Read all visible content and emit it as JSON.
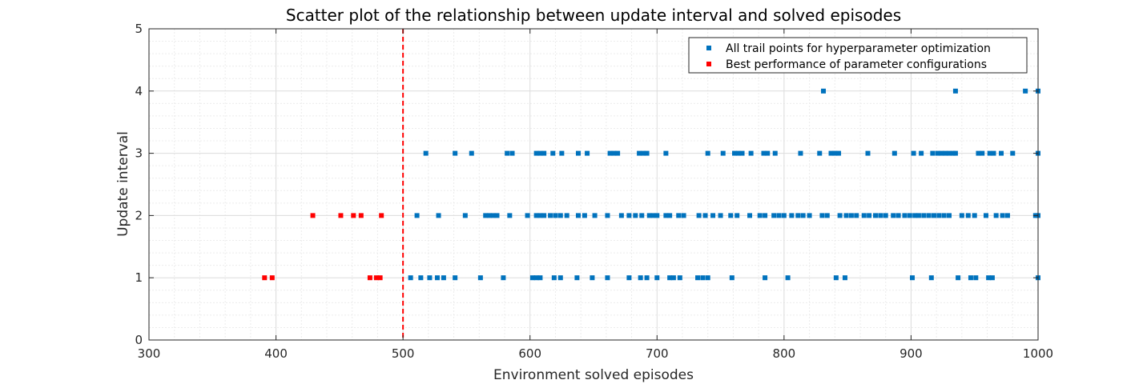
{
  "chart_data": {
    "type": "scatter",
    "title": "Scatter plot of the relationship between update interval and solved episodes",
    "xlabel": "Environment solved episodes",
    "ylabel": "Update interval",
    "xlim": [
      300,
      1000
    ],
    "ylim": [
      0,
      5
    ],
    "xticks": [
      "300",
      "400",
      "500",
      "600",
      "700",
      "800",
      "900",
      "1000"
    ],
    "yticks": [
      "0",
      "1",
      "2",
      "3",
      "4",
      "5"
    ],
    "grid": true,
    "minor_grid": true,
    "legend_position": "top-right",
    "reference_line": {
      "axis": "x",
      "value": 500,
      "style": "dashed",
      "color": "#ff0000"
    },
    "series": [
      {
        "name": "All trail points for hyperparameter optimization",
        "color": "#0072bd",
        "marker": "square",
        "points": [
          [
            831,
            4
          ],
          [
            935,
            4
          ],
          [
            990,
            4
          ],
          [
            1000,
            4
          ],
          [
            518,
            3
          ],
          [
            541,
            3
          ],
          [
            554,
            3
          ],
          [
            582,
            3
          ],
          [
            586,
            3
          ],
          [
            605,
            3
          ],
          [
            608,
            3
          ],
          [
            611,
            3
          ],
          [
            618,
            3
          ],
          [
            625,
            3
          ],
          [
            638,
            3
          ],
          [
            645,
            3
          ],
          [
            663,
            3
          ],
          [
            666,
            3
          ],
          [
            669,
            3
          ],
          [
            686,
            3
          ],
          [
            689,
            3
          ],
          [
            692,
            3
          ],
          [
            707,
            3
          ],
          [
            740,
            3
          ],
          [
            752,
            3
          ],
          [
            761,
            3
          ],
          [
            764,
            3
          ],
          [
            767,
            3
          ],
          [
            774,
            3
          ],
          [
            784,
            3
          ],
          [
            787,
            3
          ],
          [
            793,
            3
          ],
          [
            813,
            3
          ],
          [
            828,
            3
          ],
          [
            837,
            3
          ],
          [
            840,
            3
          ],
          [
            843,
            3
          ],
          [
            866,
            3
          ],
          [
            887,
            3
          ],
          [
            902,
            3
          ],
          [
            908,
            3
          ],
          [
            917,
            3
          ],
          [
            921,
            3
          ],
          [
            924,
            3
          ],
          [
            927,
            3
          ],
          [
            930,
            3
          ],
          [
            933,
            3
          ],
          [
            935,
            3
          ],
          [
            953,
            3
          ],
          [
            956,
            3
          ],
          [
            962,
            3
          ],
          [
            965,
            3
          ],
          [
            971,
            3
          ],
          [
            980,
            3
          ],
          [
            1000,
            3
          ],
          [
            511,
            2
          ],
          [
            528,
            2
          ],
          [
            549,
            2
          ],
          [
            565,
            2
          ],
          [
            568,
            2
          ],
          [
            571,
            2
          ],
          [
            574,
            2
          ],
          [
            584,
            2
          ],
          [
            598,
            2
          ],
          [
            605,
            2
          ],
          [
            608,
            2
          ],
          [
            611,
            2
          ],
          [
            616,
            2
          ],
          [
            620,
            2
          ],
          [
            624,
            2
          ],
          [
            629,
            2
          ],
          [
            638,
            2
          ],
          [
            643,
            2
          ],
          [
            651,
            2
          ],
          [
            661,
            2
          ],
          [
            672,
            2
          ],
          [
            678,
            2
          ],
          [
            683,
            2
          ],
          [
            688,
            2
          ],
          [
            694,
            2
          ],
          [
            697,
            2
          ],
          [
            700,
            2
          ],
          [
            707,
            2
          ],
          [
            710,
            2
          ],
          [
            717,
            2
          ],
          [
            721,
            2
          ],
          [
            733,
            2
          ],
          [
            738,
            2
          ],
          [
            744,
            2
          ],
          [
            750,
            2
          ],
          [
            758,
            2
          ],
          [
            763,
            2
          ],
          [
            773,
            2
          ],
          [
            781,
            2
          ],
          [
            785,
            2
          ],
          [
            792,
            2
          ],
          [
            796,
            2
          ],
          [
            800,
            2
          ],
          [
            806,
            2
          ],
          [
            811,
            2
          ],
          [
            815,
            2
          ],
          [
            820,
            2
          ],
          [
            830,
            2
          ],
          [
            834,
            2
          ],
          [
            844,
            2
          ],
          [
            849,
            2
          ],
          [
            853,
            2
          ],
          [
            857,
            2
          ],
          [
            863,
            2
          ],
          [
            867,
            2
          ],
          [
            872,
            2
          ],
          [
            876,
            2
          ],
          [
            880,
            2
          ],
          [
            886,
            2
          ],
          [
            890,
            2
          ],
          [
            895,
            2
          ],
          [
            899,
            2
          ],
          [
            903,
            2
          ],
          [
            906,
            2
          ],
          [
            910,
            2
          ],
          [
            914,
            2
          ],
          [
            918,
            2
          ],
          [
            922,
            2
          ],
          [
            926,
            2
          ],
          [
            930,
            2
          ],
          [
            940,
            2
          ],
          [
            945,
            2
          ],
          [
            950,
            2
          ],
          [
            959,
            2
          ],
          [
            967,
            2
          ],
          [
            972,
            2
          ],
          [
            976,
            2
          ],
          [
            998,
            2
          ],
          [
            1000,
            2
          ],
          [
            506,
            1
          ],
          [
            514,
            1
          ],
          [
            521,
            1
          ],
          [
            527,
            1
          ],
          [
            532,
            1
          ],
          [
            541,
            1
          ],
          [
            561,
            1
          ],
          [
            579,
            1
          ],
          [
            602,
            1
          ],
          [
            605,
            1
          ],
          [
            608,
            1
          ],
          [
            619,
            1
          ],
          [
            624,
            1
          ],
          [
            637,
            1
          ],
          [
            649,
            1
          ],
          [
            661,
            1
          ],
          [
            678,
            1
          ],
          [
            687,
            1
          ],
          [
            692,
            1
          ],
          [
            700,
            1
          ],
          [
            710,
            1
          ],
          [
            713,
            1
          ],
          [
            718,
            1
          ],
          [
            732,
            1
          ],
          [
            736,
            1
          ],
          [
            740,
            1
          ],
          [
            759,
            1
          ],
          [
            785,
            1
          ],
          [
            803,
            1
          ],
          [
            841,
            1
          ],
          [
            848,
            1
          ],
          [
            901,
            1
          ],
          [
            916,
            1
          ],
          [
            937,
            1
          ],
          [
            947,
            1
          ],
          [
            951,
            1
          ],
          [
            961,
            1
          ],
          [
            964,
            1
          ],
          [
            1000,
            1
          ]
        ]
      },
      {
        "name": "Best performance of parameter configurations",
        "color": "#ff0000",
        "marker": "square",
        "points": [
          [
            429,
            2
          ],
          [
            451,
            2
          ],
          [
            461,
            2
          ],
          [
            467,
            2
          ],
          [
            483,
            2
          ],
          [
            391,
            1
          ],
          [
            397,
            1
          ],
          [
            474,
            1
          ],
          [
            479,
            1
          ],
          [
            482,
            1
          ]
        ]
      }
    ]
  }
}
